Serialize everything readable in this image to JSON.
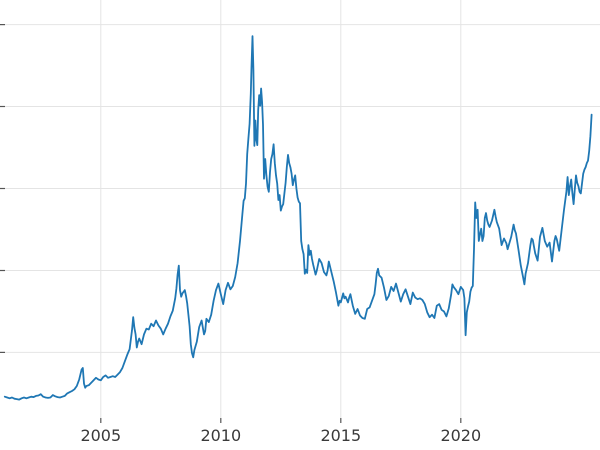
{
  "chart_data": {
    "type": "line",
    "title": "",
    "xlabel": "",
    "ylabel": "",
    "xlim": [
      2000.8,
      2025.8
    ],
    "ylim": [
      2,
      53
    ],
    "xticks": [
      2005,
      2010,
      2015,
      2020
    ],
    "xtick_labels": [
      "2005",
      "2010",
      "2015",
      "2020"
    ],
    "ygrid": [
      10,
      20,
      30,
      40,
      50
    ],
    "grid": true,
    "legend_position": "none",
    "line_color": "#1f77b4",
    "grid_color": "#e4e4e4",
    "tick_color": "#555555",
    "label_color": "#3a3a3a",
    "points": [
      [
        2001.0,
        4.6
      ],
      [
        2001.1,
        4.5
      ],
      [
        2001.2,
        4.4
      ],
      [
        2001.3,
        4.5
      ],
      [
        2001.4,
        4.35
      ],
      [
        2001.5,
        4.3
      ],
      [
        2001.6,
        4.25
      ],
      [
        2001.7,
        4.4
      ],
      [
        2001.8,
        4.5
      ],
      [
        2001.9,
        4.4
      ],
      [
        2002.0,
        4.5
      ],
      [
        2002.1,
        4.6
      ],
      [
        2002.2,
        4.55
      ],
      [
        2002.3,
        4.7
      ],
      [
        2002.4,
        4.75
      ],
      [
        2002.5,
        4.9
      ],
      [
        2002.6,
        4.6
      ],
      [
        2002.7,
        4.5
      ],
      [
        2002.8,
        4.45
      ],
      [
        2002.9,
        4.5
      ],
      [
        2003.0,
        4.8
      ],
      [
        2003.1,
        4.65
      ],
      [
        2003.2,
        4.55
      ],
      [
        2003.3,
        4.5
      ],
      [
        2003.4,
        4.6
      ],
      [
        2003.5,
        4.7
      ],
      [
        2003.6,
        5.0
      ],
      [
        2003.7,
        5.15
      ],
      [
        2003.8,
        5.3
      ],
      [
        2003.9,
        5.5
      ],
      [
        2004.0,
        5.9
      ],
      [
        2004.1,
        6.7
      ],
      [
        2004.2,
        7.9
      ],
      [
        2004.25,
        8.1
      ],
      [
        2004.3,
        6.2
      ],
      [
        2004.35,
        5.7
      ],
      [
        2004.4,
        5.9
      ],
      [
        2004.5,
        6.0
      ],
      [
        2004.6,
        6.3
      ],
      [
        2004.7,
        6.6
      ],
      [
        2004.8,
        6.9
      ],
      [
        2004.9,
        6.7
      ],
      [
        2005.0,
        6.6
      ],
      [
        2005.1,
        7.0
      ],
      [
        2005.2,
        7.2
      ],
      [
        2005.3,
        6.9
      ],
      [
        2005.4,
        7.0
      ],
      [
        2005.5,
        7.1
      ],
      [
        2005.6,
        7.0
      ],
      [
        2005.7,
        7.3
      ],
      [
        2005.8,
        7.6
      ],
      [
        2005.9,
        8.1
      ],
      [
        2006.0,
        8.9
      ],
      [
        2006.1,
        9.7
      ],
      [
        2006.2,
        10.4
      ],
      [
        2006.3,
        12.7
      ],
      [
        2006.35,
        14.3
      ],
      [
        2006.4,
        13.0
      ],
      [
        2006.45,
        12.2
      ],
      [
        2006.5,
        10.6
      ],
      [
        2006.55,
        11.3
      ],
      [
        2006.6,
        11.7
      ],
      [
        2006.7,
        11.0
      ],
      [
        2006.8,
        12.2
      ],
      [
        2006.9,
        12.9
      ],
      [
        2007.0,
        12.8
      ],
      [
        2007.1,
        13.5
      ],
      [
        2007.2,
        13.2
      ],
      [
        2007.3,
        13.9
      ],
      [
        2007.4,
        13.3
      ],
      [
        2007.5,
        12.9
      ],
      [
        2007.6,
        12.2
      ],
      [
        2007.7,
        12.9
      ],
      [
        2007.8,
        13.5
      ],
      [
        2007.9,
        14.4
      ],
      [
        2008.0,
        15.1
      ],
      [
        2008.1,
        16.6
      ],
      [
        2008.15,
        17.8
      ],
      [
        2008.2,
        19.5
      ],
      [
        2008.25,
        20.6
      ],
      [
        2008.3,
        17.6
      ],
      [
        2008.35,
        16.8
      ],
      [
        2008.4,
        17.2
      ],
      [
        2008.5,
        17.6
      ],
      [
        2008.55,
        16.9
      ],
      [
        2008.6,
        16.0
      ],
      [
        2008.65,
        14.6
      ],
      [
        2008.7,
        13.2
      ],
      [
        2008.75,
        11.0
      ],
      [
        2008.8,
        9.9
      ],
      [
        2008.85,
        9.4
      ],
      [
        2008.9,
        10.3
      ],
      [
        2008.95,
        10.8
      ],
      [
        2009.0,
        11.3
      ],
      [
        2009.1,
        13.1
      ],
      [
        2009.2,
        13.9
      ],
      [
        2009.3,
        12.2
      ],
      [
        2009.35,
        12.6
      ],
      [
        2009.4,
        14.1
      ],
      [
        2009.5,
        13.7
      ],
      [
        2009.6,
        14.6
      ],
      [
        2009.7,
        16.3
      ],
      [
        2009.8,
        17.6
      ],
      [
        2009.9,
        18.4
      ],
      [
        2010.0,
        17.1
      ],
      [
        2010.1,
        15.9
      ],
      [
        2010.2,
        17.6
      ],
      [
        2010.3,
        18.5
      ],
      [
        2010.4,
        17.7
      ],
      [
        2010.5,
        18.1
      ],
      [
        2010.6,
        19.2
      ],
      [
        2010.7,
        20.9
      ],
      [
        2010.8,
        23.6
      ],
      [
        2010.9,
        26.9
      ],
      [
        2010.95,
        28.5
      ],
      [
        2011.0,
        28.8
      ],
      [
        2011.05,
        30.6
      ],
      [
        2011.1,
        34.2
      ],
      [
        2011.15,
        36.1
      ],
      [
        2011.2,
        37.9
      ],
      [
        2011.25,
        41.6
      ],
      [
        2011.28,
        44.8
      ],
      [
        2011.32,
        48.6
      ],
      [
        2011.36,
        44.5
      ],
      [
        2011.4,
        35.2
      ],
      [
        2011.44,
        38.3
      ],
      [
        2011.48,
        36.0
      ],
      [
        2011.52,
        35.3
      ],
      [
        2011.56,
        39.6
      ],
      [
        2011.6,
        41.4
      ],
      [
        2011.64,
        40.1
      ],
      [
        2011.68,
        42.2
      ],
      [
        2011.72,
        40.5
      ],
      [
        2011.76,
        37.8
      ],
      [
        2011.8,
        31.2
      ],
      [
        2011.85,
        33.6
      ],
      [
        2011.9,
        31.6
      ],
      [
        2011.95,
        30.2
      ],
      [
        2012.0,
        29.6
      ],
      [
        2012.05,
        32.0
      ],
      [
        2012.1,
        33.6
      ],
      [
        2012.15,
        34.2
      ],
      [
        2012.2,
        35.4
      ],
      [
        2012.25,
        33.1
      ],
      [
        2012.3,
        31.6
      ],
      [
        2012.35,
        30.6
      ],
      [
        2012.4,
        28.6
      ],
      [
        2012.45,
        29.2
      ],
      [
        2012.5,
        27.3
      ],
      [
        2012.55,
        27.8
      ],
      [
        2012.6,
        28.1
      ],
      [
        2012.65,
        29.4
      ],
      [
        2012.7,
        30.7
      ],
      [
        2012.75,
        32.6
      ],
      [
        2012.8,
        34.1
      ],
      [
        2012.85,
        33.1
      ],
      [
        2012.9,
        32.6
      ],
      [
        2012.95,
        31.8
      ],
      [
        2013.0,
        30.4
      ],
      [
        2013.05,
        31.1
      ],
      [
        2013.1,
        31.6
      ],
      [
        2013.15,
        30.0
      ],
      [
        2013.2,
        28.9
      ],
      [
        2013.25,
        28.4
      ],
      [
        2013.3,
        28.2
      ],
      [
        2013.35,
        23.6
      ],
      [
        2013.4,
        22.6
      ],
      [
        2013.45,
        22.0
      ],
      [
        2013.5,
        19.6
      ],
      [
        2013.55,
        20.1
      ],
      [
        2013.6,
        19.7
      ],
      [
        2013.65,
        23.1
      ],
      [
        2013.7,
        21.9
      ],
      [
        2013.75,
        22.4
      ],
      [
        2013.8,
        21.4
      ],
      [
        2013.85,
        20.7
      ],
      [
        2013.9,
        20.1
      ],
      [
        2013.95,
        19.5
      ],
      [
        2014.0,
        20.0
      ],
      [
        2014.1,
        21.4
      ],
      [
        2014.2,
        20.9
      ],
      [
        2014.3,
        19.8
      ],
      [
        2014.4,
        19.4
      ],
      [
        2014.45,
        20.0
      ],
      [
        2014.5,
        21.1
      ],
      [
        2014.6,
        19.9
      ],
      [
        2014.7,
        18.7
      ],
      [
        2014.8,
        17.3
      ],
      [
        2014.9,
        15.7
      ],
      [
        2014.95,
        16.3
      ],
      [
        2015.0,
        16.1
      ],
      [
        2015.1,
        17.2
      ],
      [
        2015.15,
        16.6
      ],
      [
        2015.2,
        16.8
      ],
      [
        2015.3,
        16.1
      ],
      [
        2015.35,
        16.7
      ],
      [
        2015.4,
        17.1
      ],
      [
        2015.5,
        15.7
      ],
      [
        2015.6,
        14.7
      ],
      [
        2015.7,
        15.3
      ],
      [
        2015.8,
        14.5
      ],
      [
        2015.9,
        14.2
      ],
      [
        2016.0,
        14.1
      ],
      [
        2016.1,
        15.3
      ],
      [
        2016.2,
        15.5
      ],
      [
        2016.3,
        16.3
      ],
      [
        2016.4,
        17.1
      ],
      [
        2016.45,
        18.3
      ],
      [
        2016.5,
        19.7
      ],
      [
        2016.55,
        20.2
      ],
      [
        2016.6,
        19.4
      ],
      [
        2016.7,
        19.1
      ],
      [
        2016.8,
        17.9
      ],
      [
        2016.9,
        16.4
      ],
      [
        2017.0,
        16.9
      ],
      [
        2017.1,
        18.0
      ],
      [
        2017.2,
        17.5
      ],
      [
        2017.3,
        18.4
      ],
      [
        2017.4,
        17.3
      ],
      [
        2017.5,
        16.2
      ],
      [
        2017.6,
        17.1
      ],
      [
        2017.7,
        17.7
      ],
      [
        2017.8,
        16.8
      ],
      [
        2017.9,
        15.9
      ],
      [
        2018.0,
        17.3
      ],
      [
        2018.1,
        16.7
      ],
      [
        2018.2,
        16.5
      ],
      [
        2018.3,
        16.6
      ],
      [
        2018.4,
        16.4
      ],
      [
        2018.5,
        15.9
      ],
      [
        2018.6,
        14.9
      ],
      [
        2018.7,
        14.3
      ],
      [
        2018.8,
        14.6
      ],
      [
        2018.9,
        14.2
      ],
      [
        2019.0,
        15.7
      ],
      [
        2019.1,
        15.9
      ],
      [
        2019.2,
        15.2
      ],
      [
        2019.3,
        15.0
      ],
      [
        2019.4,
        14.4
      ],
      [
        2019.5,
        15.4
      ],
      [
        2019.6,
        17.1
      ],
      [
        2019.65,
        18.3
      ],
      [
        2019.7,
        18.0
      ],
      [
        2019.8,
        17.6
      ],
      [
        2019.9,
        17.1
      ],
      [
        2020.0,
        18.0
      ],
      [
        2020.05,
        17.8
      ],
      [
        2020.1,
        17.6
      ],
      [
        2020.15,
        16.6
      ],
      [
        2020.2,
        12.1
      ],
      [
        2020.25,
        14.9
      ],
      [
        2020.3,
        15.6
      ],
      [
        2020.35,
        16.2
      ],
      [
        2020.4,
        17.4
      ],
      [
        2020.45,
        17.9
      ],
      [
        2020.5,
        18.1
      ],
      [
        2020.55,
        22.6
      ],
      [
        2020.6,
        28.3
      ],
      [
        2020.65,
        26.4
      ],
      [
        2020.7,
        27.4
      ],
      [
        2020.75,
        23.6
      ],
      [
        2020.8,
        24.4
      ],
      [
        2020.85,
        25.1
      ],
      [
        2020.9,
        23.6
      ],
      [
        2020.95,
        24.2
      ],
      [
        2021.0,
        26.4
      ],
      [
        2021.05,
        27.0
      ],
      [
        2021.1,
        26.1
      ],
      [
        2021.15,
        25.6
      ],
      [
        2021.2,
        25.3
      ],
      [
        2021.3,
        26.1
      ],
      [
        2021.4,
        27.4
      ],
      [
        2021.45,
        26.6
      ],
      [
        2021.5,
        25.9
      ],
      [
        2021.6,
        25.1
      ],
      [
        2021.7,
        23.1
      ],
      [
        2021.8,
        23.9
      ],
      [
        2021.9,
        23.3
      ],
      [
        2021.95,
        22.6
      ],
      [
        2022.0,
        23.1
      ],
      [
        2022.1,
        24.1
      ],
      [
        2022.2,
        25.6
      ],
      [
        2022.25,
        24.9
      ],
      [
        2022.3,
        24.5
      ],
      [
        2022.4,
        22.6
      ],
      [
        2022.5,
        20.6
      ],
      [
        2022.6,
        19.1
      ],
      [
        2022.65,
        18.3
      ],
      [
        2022.7,
        19.6
      ],
      [
        2022.8,
        20.9
      ],
      [
        2022.9,
        23.1
      ],
      [
        2022.95,
        23.9
      ],
      [
        2023.0,
        23.7
      ],
      [
        2023.1,
        22.1
      ],
      [
        2023.2,
        21.2
      ],
      [
        2023.3,
        24.1
      ],
      [
        2023.4,
        25.2
      ],
      [
        2023.5,
        23.6
      ],
      [
        2023.6,
        22.9
      ],
      [
        2023.7,
        23.4
      ],
      [
        2023.8,
        21.1
      ],
      [
        2023.9,
        23.6
      ],
      [
        2023.95,
        24.2
      ],
      [
        2024.0,
        23.8
      ],
      [
        2024.1,
        22.4
      ],
      [
        2024.2,
        24.9
      ],
      [
        2024.3,
        27.4
      ],
      [
        2024.4,
        29.6
      ],
      [
        2024.45,
        31.4
      ],
      [
        2024.5,
        29.2
      ],
      [
        2024.55,
        30.3
      ],
      [
        2024.6,
        31.1
      ],
      [
        2024.65,
        29.4
      ],
      [
        2024.7,
        28.1
      ],
      [
        2024.75,
        29.9
      ],
      [
        2024.8,
        31.6
      ],
      [
        2024.85,
        30.7
      ],
      [
        2024.9,
        30.3
      ],
      [
        2024.95,
        29.6
      ],
      [
        2025.0,
        29.4
      ],
      [
        2025.05,
        30.6
      ],
      [
        2025.1,
        31.8
      ],
      [
        2025.15,
        32.3
      ],
      [
        2025.2,
        32.6
      ],
      [
        2025.25,
        33.1
      ],
      [
        2025.3,
        33.4
      ],
      [
        2025.35,
        34.6
      ],
      [
        2025.4,
        36.4
      ],
      [
        2025.45,
        39.0
      ]
    ]
  }
}
